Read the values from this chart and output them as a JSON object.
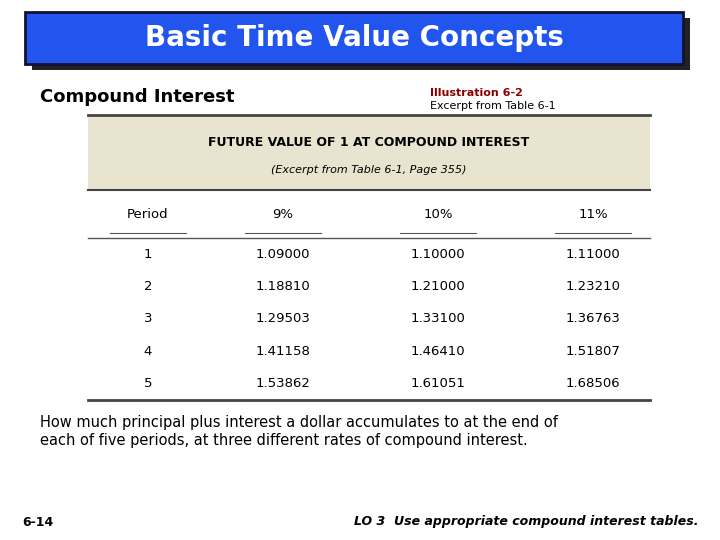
{
  "title": "Basic Time Value Concepts",
  "title_bg": "#2255ee",
  "title_color": "white",
  "subtitle": "Compound Interest",
  "illustration_line1": "Illustration 6-2",
  "illustration_line2": "Excerpt from Table 6-1",
  "illustration_color": "#8B0000",
  "table_header1": "FUTURE VALUE OF 1 AT COMPOUND INTEREST",
  "table_header2": "(Excerpt from Table 6-1, Page 355)",
  "col_headers": [
    "Period",
    "9%",
    "10%",
    "11%"
  ],
  "periods": [
    1,
    2,
    3,
    4,
    5
  ],
  "data_9pct": [
    1.09,
    1.1881,
    1.29503,
    1.41158,
    1.53862
  ],
  "data_10pct": [
    1.1,
    1.21,
    1.331,
    1.4641,
    1.61051
  ],
  "data_11pct": [
    1.11,
    1.2321,
    1.36763,
    1.51807,
    1.68506
  ],
  "body_text_line1": "How much principal plus interest a dollar accumulates to at the end of",
  "body_text_line2": "each of five periods, at three different rates of compound interest.",
  "footer_left": "6-14",
  "footer_right": "LO 3  Use appropriate compound interest tables.",
  "table_header_bg": "#e8e4d0",
  "table_body_bg": "white",
  "slide_bg": "white",
  "shadow_color": "#222222"
}
